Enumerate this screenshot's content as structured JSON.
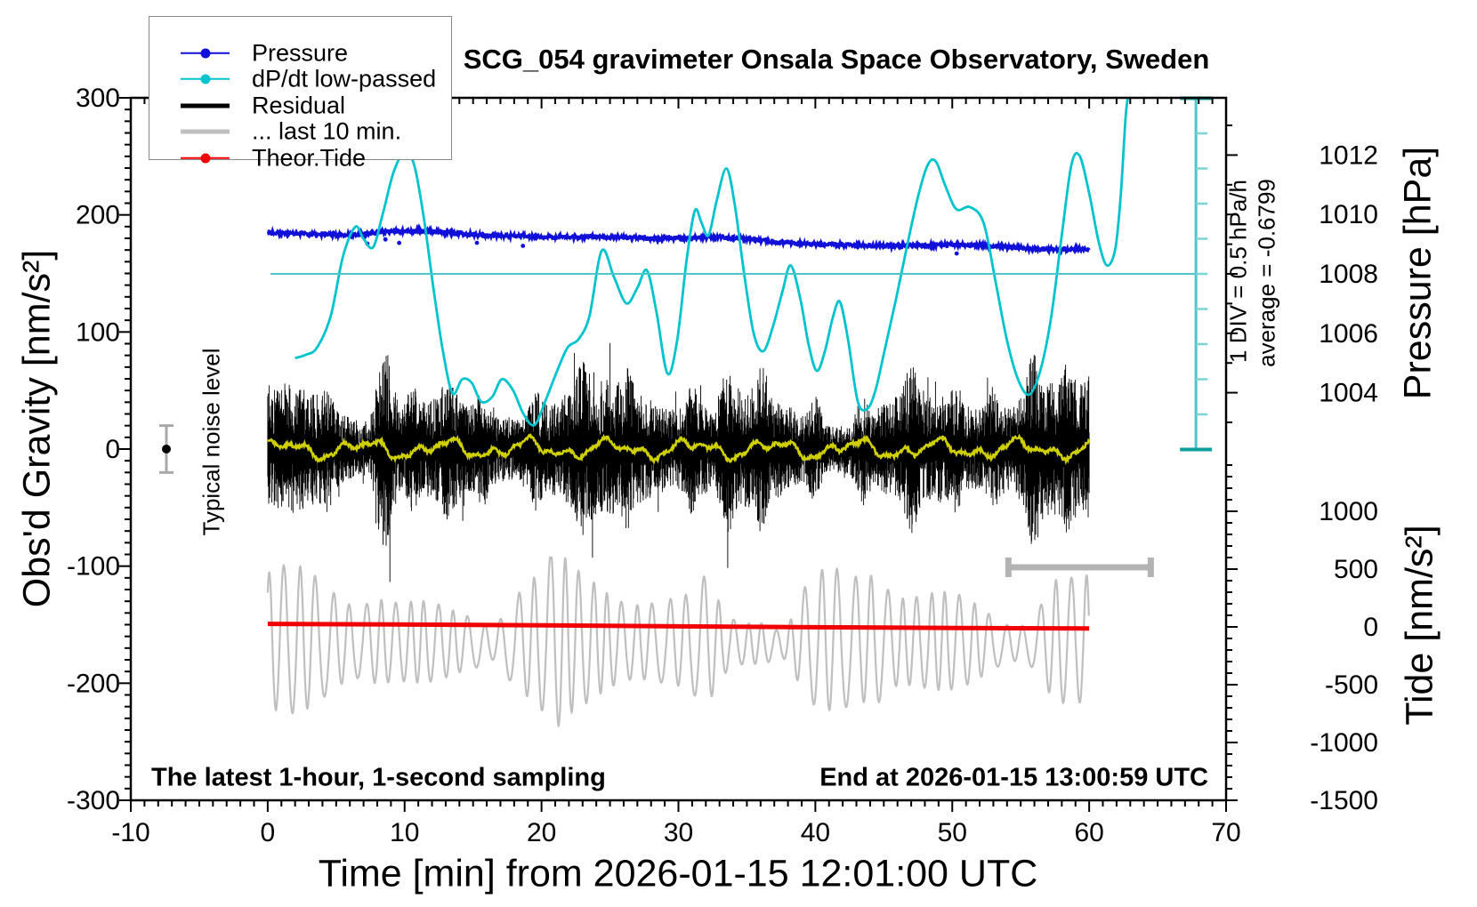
{
  "title": "SCG_054 gravimeter Onsala Space Observatory, Sweden",
  "legend": {
    "items": [
      {
        "label": "Pressure",
        "color": "#1010d8",
        "thick": false,
        "marker": true
      },
      {
        "label": "dP/dt low-passed",
        "color": "#00c4cd",
        "thick": false,
        "marker": true
      },
      {
        "label": "Residual",
        "color": "#000000",
        "thick": true,
        "marker": false
      },
      {
        "label": "... last 10 min.",
        "color": "#bfbfbf",
        "thick": true,
        "marker": false
      },
      {
        "label": "Theor.Tide",
        "color": "#f00000",
        "thick": false,
        "marker": true
      }
    ]
  },
  "notes": {
    "sampling": "The latest 1-hour, 1-second sampling",
    "end": "End at 2026-01-15 13:00:59 UTC",
    "noise_level": "Typical noise level",
    "div": "1 DIV = 0.5 hPa/h",
    "average": "average = -0.6799"
  },
  "axes": {
    "x": {
      "label": "Time [min] from 2026-01-15 12:01:00 UTC",
      "min": -10,
      "max": 70,
      "major_ticks": [
        -10,
        0,
        10,
        20,
        30,
        40,
        50,
        60,
        70
      ],
      "minor_step": 1
    },
    "gravity": {
      "label": "Obs'd Gravity [nm/s²]",
      "min": -300,
      "max": 300,
      "major_ticks": [
        300,
        200,
        100,
        0,
        -100,
        -200,
        -300
      ],
      "minor_step": 10
    },
    "pressure": {
      "label": "Pressure [hPa]",
      "major_ticks": [
        1012,
        1010,
        1008,
        1006,
        1004
      ],
      "minor_step": 1,
      "minor_range": [
        1003,
        1013
      ]
    },
    "tide": {
      "label": "Tide [nm/s²]",
      "major_ticks": [
        1000,
        500,
        0,
        -500,
        -1000,
        -1500
      ],
      "minor_step": 100,
      "minor_range": [
        -1500,
        1400
      ]
    }
  },
  "chart_data": {
    "type": "line",
    "title": "SCG_054 gravimeter Onsala Space Observatory, Sweden",
    "xlabel": "Time [min] from 2026-01-15 12:01:00 UTC",
    "xlim": [
      -10,
      70
    ],
    "grid": false,
    "legend_position": "top-left",
    "series": [
      {
        "name": "Pressure",
        "axis": "pressure_hPa",
        "color": "#1010d8",
        "style": "fuzzy-thick",
        "control_points": [
          [
            0,
            1009.4
          ],
          [
            2,
            1009.36
          ],
          [
            4,
            1009.33
          ],
          [
            6,
            1009.32
          ],
          [
            7,
            1009.35
          ],
          [
            9,
            1009.42
          ],
          [
            11,
            1009.46
          ],
          [
            12,
            1009.44
          ],
          [
            14,
            1009.36
          ],
          [
            16,
            1009.3
          ],
          [
            18,
            1009.27
          ],
          [
            20,
            1009.25
          ],
          [
            22,
            1009.24
          ],
          [
            24,
            1009.25
          ],
          [
            26,
            1009.23
          ],
          [
            28,
            1009.2
          ],
          [
            30,
            1009.19
          ],
          [
            31.5,
            1009.22
          ],
          [
            33,
            1009.24
          ],
          [
            34.5,
            1009.2
          ],
          [
            36,
            1009.12
          ],
          [
            38,
            1009.05
          ],
          [
            40,
            1009.0
          ],
          [
            42,
            1008.98
          ],
          [
            44,
            1008.95
          ],
          [
            46,
            1008.94
          ],
          [
            48,
            1008.96
          ],
          [
            50,
            1008.98
          ],
          [
            52,
            1008.96
          ],
          [
            54,
            1008.9
          ],
          [
            56,
            1008.84
          ],
          [
            58,
            1008.82
          ],
          [
            59,
            1008.84
          ],
          [
            60,
            1008.83
          ]
        ]
      },
      {
        "name": "dP/dt low-passed",
        "axis": "dPdt_hPa_per_h",
        "color": "#00c4cd",
        "reference_level": 0,
        "div_value_hPa_per_h": 0.5,
        "average_hPa_per_h": -0.6799,
        "control_points": [
          [
            2.0,
            -1.2
          ],
          [
            2.8,
            -1.15
          ],
          [
            3.6,
            -1.05
          ],
          [
            4.6,
            -0.6
          ],
          [
            5.5,
            0.25
          ],
          [
            6.4,
            0.67
          ],
          [
            7.0,
            0.5
          ],
          [
            7.7,
            0.38
          ],
          [
            8.4,
            0.85
          ],
          [
            9.2,
            1.45
          ],
          [
            10.0,
            1.73
          ],
          [
            10.7,
            1.55
          ],
          [
            11.4,
            0.8
          ],
          [
            12.1,
            -0.2
          ],
          [
            12.8,
            -1.1
          ],
          [
            13.5,
            -1.7
          ],
          [
            14.2,
            -1.5
          ],
          [
            14.9,
            -1.55
          ],
          [
            15.6,
            -1.82
          ],
          [
            16.4,
            -1.75
          ],
          [
            17.1,
            -1.5
          ],
          [
            17.9,
            -1.65
          ],
          [
            18.7,
            -2.0
          ],
          [
            19.5,
            -2.15
          ],
          [
            20.3,
            -1.8
          ],
          [
            21.1,
            -1.4
          ],
          [
            21.9,
            -1.05
          ],
          [
            22.7,
            -0.93
          ],
          [
            23.5,
            -0.6
          ],
          [
            24.4,
            0.33
          ],
          [
            25.3,
            -0.05
          ],
          [
            26.2,
            -0.42
          ],
          [
            27.0,
            -0.2
          ],
          [
            27.7,
            0.05
          ],
          [
            28.4,
            -0.55
          ],
          [
            29.2,
            -1.42
          ],
          [
            29.9,
            -0.95
          ],
          [
            30.6,
            0.2
          ],
          [
            31.2,
            0.9
          ],
          [
            31.7,
            0.72
          ],
          [
            32.2,
            0.55
          ],
          [
            32.8,
            1.05
          ],
          [
            33.5,
            1.5
          ],
          [
            34.1,
            1.0
          ],
          [
            34.8,
            0.0
          ],
          [
            35.5,
            -0.85
          ],
          [
            36.2,
            -1.1
          ],
          [
            36.9,
            -0.75
          ],
          [
            37.6,
            -0.25
          ],
          [
            38.2,
            0.12
          ],
          [
            38.9,
            -0.35
          ],
          [
            39.5,
            -1.0
          ],
          [
            40.1,
            -1.38
          ],
          [
            40.7,
            -1.1
          ],
          [
            41.3,
            -0.6
          ],
          [
            41.8,
            -0.4
          ],
          [
            42.4,
            -0.95
          ],
          [
            43.1,
            -1.82
          ],
          [
            43.8,
            -1.92
          ],
          [
            44.4,
            -1.65
          ],
          [
            45.1,
            -1.05
          ],
          [
            45.9,
            -0.35
          ],
          [
            46.7,
            0.4
          ],
          [
            47.5,
            1.1
          ],
          [
            48.2,
            1.55
          ],
          [
            48.8,
            1.6
          ],
          [
            49.5,
            1.25
          ],
          [
            50.3,
            0.92
          ],
          [
            51.3,
            0.95
          ],
          [
            52.3,
            0.72
          ],
          [
            53.2,
            -0.15
          ],
          [
            54.0,
            -0.95
          ],
          [
            54.8,
            -1.5
          ],
          [
            55.6,
            -1.72
          ],
          [
            56.4,
            -1.4
          ],
          [
            57.2,
            -0.65
          ],
          [
            58.0,
            0.55
          ],
          [
            58.7,
            1.55
          ],
          [
            59.3,
            1.68
          ],
          [
            60.0,
            1.15
          ],
          [
            60.7,
            0.45
          ],
          [
            61.3,
            0.12
          ],
          [
            61.9,
            0.35
          ],
          [
            62.3,
            1.1
          ],
          [
            62.65,
            2.2
          ],
          [
            62.85,
            2.55
          ]
        ]
      },
      {
        "name": "Residual",
        "axis": "gravity_nms2",
        "color": "#000000",
        "style": "noise-band",
        "typical_band_nms2": 40,
        "max_excursion_nms2": 115,
        "bursts": [
          [
            8.6,
            0.7,
            58
          ],
          [
            8.0,
            0.3,
            22
          ],
          [
            10.5,
            0.4,
            26
          ],
          [
            4.3,
            0.5,
            16
          ],
          [
            13.2,
            0.5,
            20
          ],
          [
            15.7,
            0.4,
            18
          ],
          [
            19.6,
            0.5,
            22
          ],
          [
            23.0,
            0.5,
            20
          ],
          [
            26.3,
            0.4,
            16
          ],
          [
            31.0,
            0.5,
            22
          ],
          [
            33.6,
            0.5,
            26
          ],
          [
            36.0,
            0.5,
            22
          ],
          [
            40.0,
            0.5,
            24
          ],
          [
            43.4,
            0.5,
            22
          ],
          [
            47.0,
            0.5,
            24
          ],
          [
            50.3,
            0.4,
            18
          ],
          [
            53.0,
            0.5,
            20
          ],
          [
            55.9,
            0.6,
            34
          ],
          [
            58.4,
            0.4,
            20
          ],
          [
            60.0,
            0.3,
            16
          ]
        ]
      },
      {
        "name": "Residual low-passed",
        "axis": "gravity_nms2",
        "color": "#cfcf00",
        "style": "smooth-small",
        "amplitude_nms2": 8
      },
      {
        "name": "... last 10 min.",
        "axis": "tide_nms2",
        "color": "#bfbfbf",
        "style": "oscillation",
        "center_nms2": -160,
        "period_min": 1.12,
        "amplitude_range_nms2": [
          100,
          800
        ],
        "amp_bursts": [
          [
            32,
            1.0,
            240
          ],
          [
            21,
            0.8,
            150
          ],
          [
            8,
            1.3,
            100
          ],
          [
            44.5,
            0.9,
            130
          ],
          [
            57.5,
            1.3,
            200
          ],
          [
            37.8,
            1.2,
            -240
          ],
          [
            16.5,
            0.8,
            -120
          ]
        ]
      },
      {
        "name": "Theor.Tide",
        "axis": "tide_nms2",
        "color": "#f00000",
        "control_points": [
          [
            0,
            26
          ],
          [
            15,
            18
          ],
          [
            30,
            5
          ],
          [
            45,
            -6
          ],
          [
            60,
            -14
          ]
        ]
      }
    ],
    "noise_marker": {
      "x_min": -7.4,
      "value_nms2": 0,
      "half_error_nms2": 20
    },
    "last10_interval_bar": {
      "x_start_min": 54.1,
      "x_end_min": 64.5,
      "gravity_nms2": -101
    },
    "dpdt_scale_bar": {
      "x_min": 67.8,
      "top_hPa_per_h": 2.5,
      "bottom_hPa_per_h": -2.5,
      "tick_step_hPa_per_h": 0.5
    }
  }
}
